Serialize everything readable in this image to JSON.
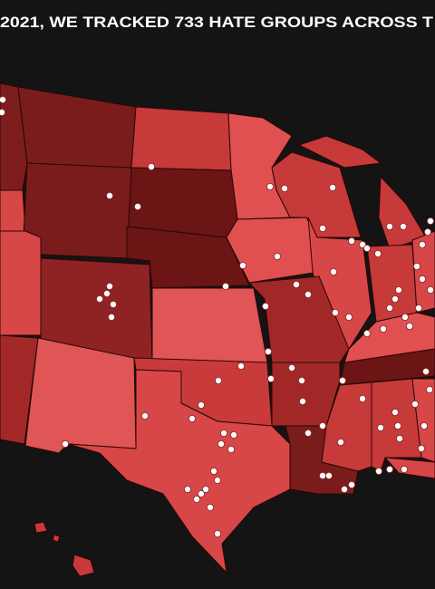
{
  "header": {
    "title": "2021, WE TRACKED 733 HATE GROUPS ACROSS T"
  }
}
